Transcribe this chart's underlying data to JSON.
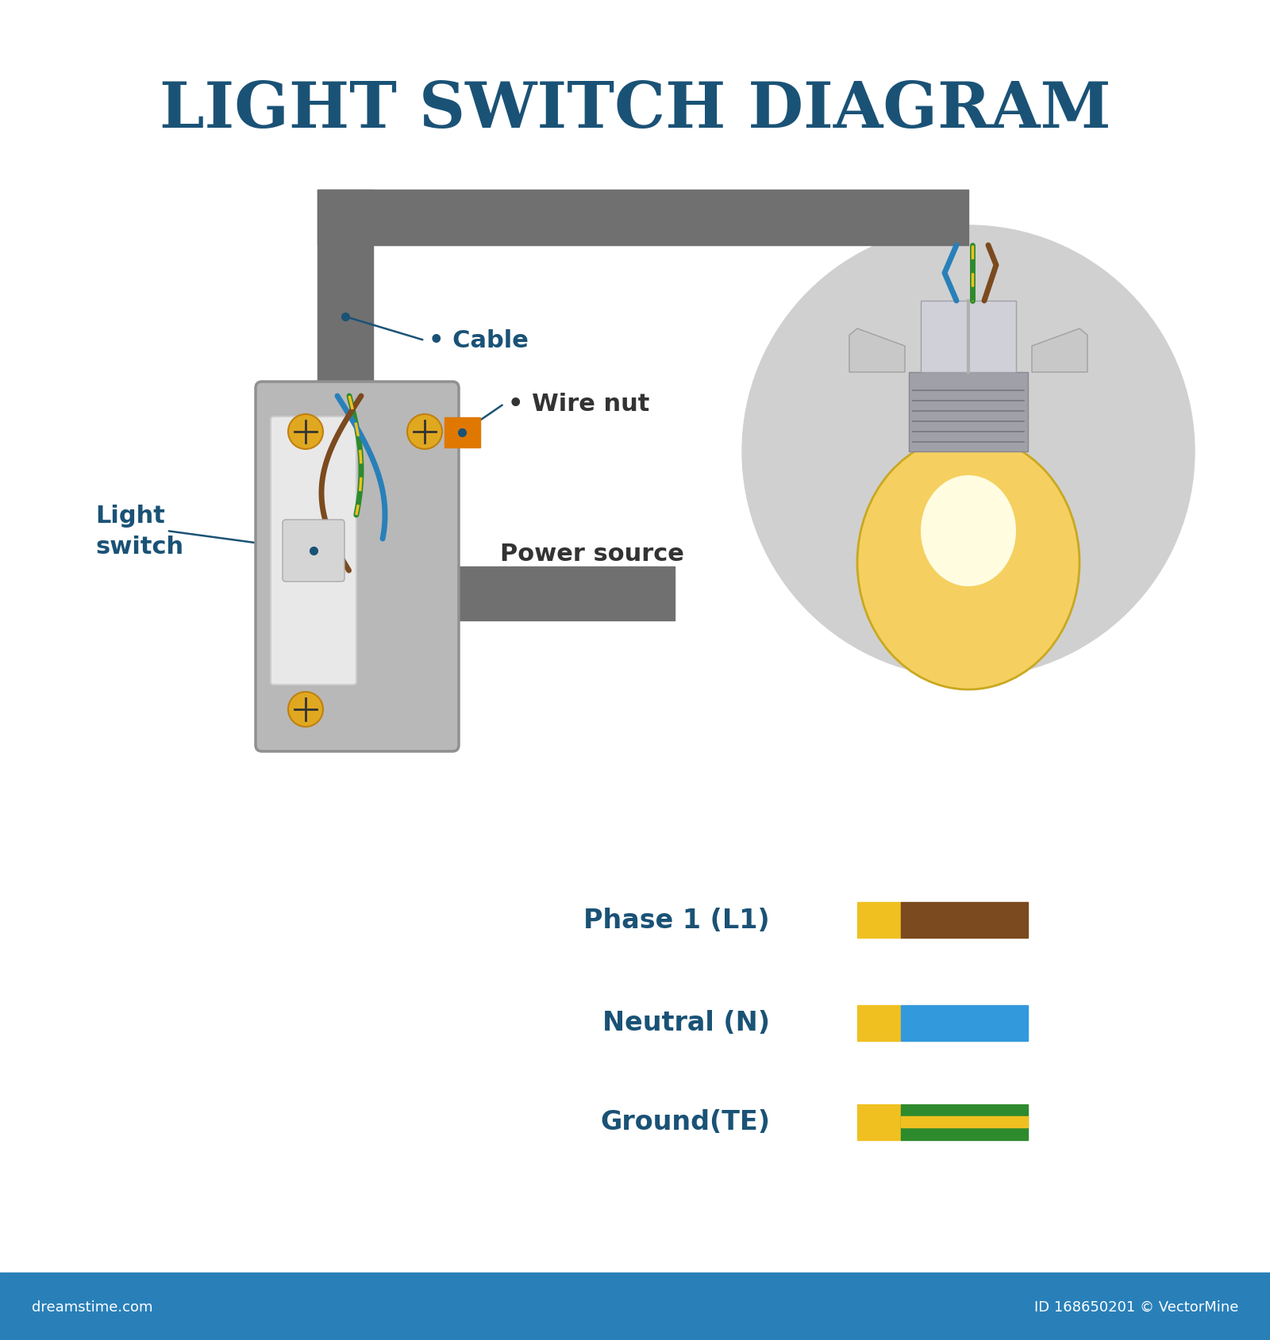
{
  "title": "LIGHT SWITCH DIAGRAM",
  "title_color": "#1a5276",
  "title_fontsize": 58,
  "bg_color": "#ffffff",
  "footer_color": "#2980b9",
  "footer_text_left": "dreamstime.com",
  "footer_text_right": "ID 168650201 © VectorMine",
  "cable_color": "#707070",
  "box_color": "#b8b8b8",
  "box_border_color": "#909090",
  "brown_wire": "#7b4a1e",
  "blue_wire": "#2980b9",
  "green_wire": "#2d8a2d",
  "yellow_wire": "#f0c020",
  "screw_color": "#e0a820",
  "wire_nut_color": "#e07800",
  "bulb_outer": "#f5d060",
  "bulb_inner": "#fffce0",
  "bulb_base_color": "#c8c8c8",
  "socket_color": "#d0d0d0",
  "glow_circle_color": "#d0d0d0",
  "label_color": "#1a5276",
  "label_font_size": 22,
  "legend_labels": [
    "Phase 1 (L1)",
    "Neutral (N)",
    "Ground(TE)"
  ],
  "legend_right_colors": [
    "#7b4a1e",
    "#3399dd",
    "#2d8a2d"
  ],
  "legend_yellow": "#f0c020"
}
